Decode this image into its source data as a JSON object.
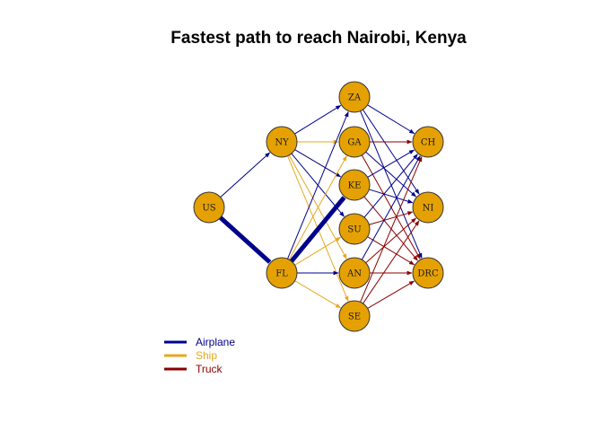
{
  "title": "Fastest path to reach Nairobi, Kenya",
  "colors": {
    "node_fill": "#E5A102",
    "node_stroke": "#333333",
    "airplane": "#00008B",
    "ship": "#E5A820",
    "truck": "#8B0000"
  },
  "nodes": [
    {
      "id": "US"
    },
    {
      "id": "NY"
    },
    {
      "id": "FL"
    },
    {
      "id": "ZA"
    },
    {
      "id": "GA"
    },
    {
      "id": "KE"
    },
    {
      "id": "SU"
    },
    {
      "id": "AN"
    },
    {
      "id": "SE"
    },
    {
      "id": "CH"
    },
    {
      "id": "NI"
    },
    {
      "id": "DRC"
    }
  ],
  "edges": [
    {
      "from": "US",
      "to": "NY",
      "mode": "Airplane",
      "highlight": false
    },
    {
      "from": "US",
      "to": "FL",
      "mode": "Airplane",
      "highlight": true
    },
    {
      "from": "NY",
      "to": "ZA",
      "mode": "Airplane",
      "highlight": false
    },
    {
      "from": "NY",
      "to": "GA",
      "mode": "Ship",
      "highlight": false
    },
    {
      "from": "NY",
      "to": "KE",
      "mode": "Airplane",
      "highlight": false
    },
    {
      "from": "NY",
      "to": "SU",
      "mode": "Airplane",
      "highlight": false
    },
    {
      "from": "NY",
      "to": "AN",
      "mode": "Ship",
      "highlight": false
    },
    {
      "from": "NY",
      "to": "SE",
      "mode": "Ship",
      "highlight": false
    },
    {
      "from": "FL",
      "to": "ZA",
      "mode": "Airplane",
      "highlight": false
    },
    {
      "from": "FL",
      "to": "GA",
      "mode": "Ship",
      "highlight": false
    },
    {
      "from": "FL",
      "to": "KE",
      "mode": "Airplane",
      "highlight": true
    },
    {
      "from": "FL",
      "to": "SU",
      "mode": "Ship",
      "highlight": false
    },
    {
      "from": "FL",
      "to": "AN",
      "mode": "Airplane",
      "highlight": false
    },
    {
      "from": "FL",
      "to": "SE",
      "mode": "Ship",
      "highlight": false
    },
    {
      "from": "ZA",
      "to": "CH",
      "mode": "Airplane",
      "highlight": false
    },
    {
      "from": "ZA",
      "to": "NI",
      "mode": "Airplane",
      "highlight": false
    },
    {
      "from": "ZA",
      "to": "DRC",
      "mode": "Airplane",
      "highlight": false
    },
    {
      "from": "GA",
      "to": "CH",
      "mode": "Truck",
      "highlight": false
    },
    {
      "from": "GA",
      "to": "NI",
      "mode": "Airplane",
      "highlight": false
    },
    {
      "from": "GA",
      "to": "DRC",
      "mode": "Truck",
      "highlight": false
    },
    {
      "from": "KE",
      "to": "CH",
      "mode": "Airplane",
      "highlight": false
    },
    {
      "from": "KE",
      "to": "NI",
      "mode": "Airplane",
      "highlight": false
    },
    {
      "from": "KE",
      "to": "DRC",
      "mode": "Truck",
      "highlight": false
    },
    {
      "from": "SU",
      "to": "CH",
      "mode": "Airplane",
      "highlight": false
    },
    {
      "from": "SU",
      "to": "NI",
      "mode": "Truck",
      "highlight": false
    },
    {
      "from": "SU",
      "to": "DRC",
      "mode": "Truck",
      "highlight": false
    },
    {
      "from": "AN",
      "to": "CH",
      "mode": "Airplane",
      "highlight": false
    },
    {
      "from": "AN",
      "to": "NI",
      "mode": "Truck",
      "highlight": false
    },
    {
      "from": "AN",
      "to": "DRC",
      "mode": "Truck",
      "highlight": false
    },
    {
      "from": "SE",
      "to": "CH",
      "mode": "Truck",
      "highlight": false
    },
    {
      "from": "SE",
      "to": "NI",
      "mode": "Truck",
      "highlight": false
    },
    {
      "from": "SE",
      "to": "DRC",
      "mode": "Truck",
      "highlight": false
    }
  ],
  "legend": [
    {
      "label": "Airplane",
      "mode": "Airplane"
    },
    {
      "label": "Ship",
      "mode": "Ship"
    },
    {
      "label": "Truck",
      "mode": "Truck"
    }
  ]
}
